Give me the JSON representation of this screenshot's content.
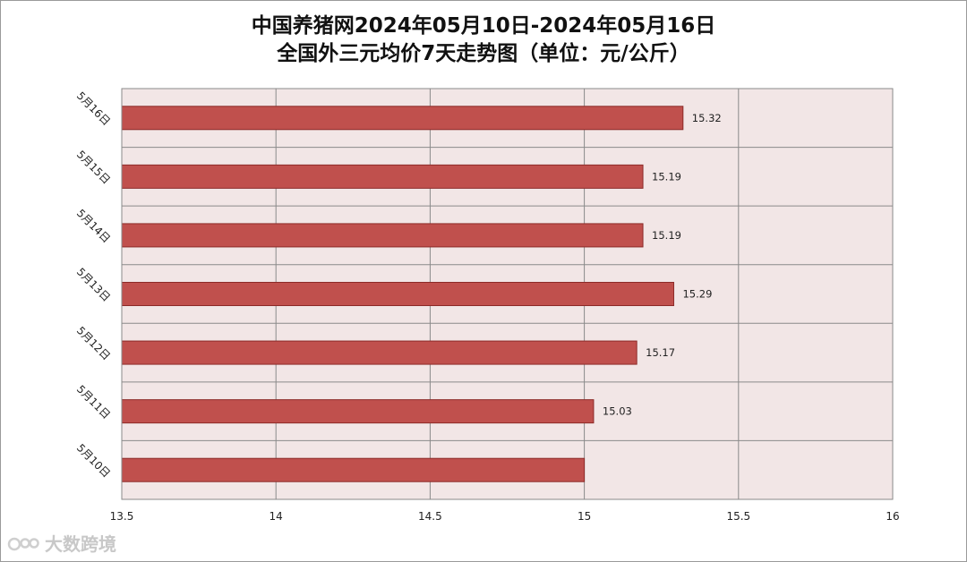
{
  "chart_data": {
    "type": "bar",
    "orientation": "horizontal",
    "title": [
      "中国养猪网2024年05月10日-2024年05月16日",
      "全国外三元均价7天走势图（单位：元/公斤）"
    ],
    "categories": [
      "5月16日",
      "5月15日",
      "5月14日",
      "5月13日",
      "5月12日",
      "5月11日",
      "5月10日"
    ],
    "values": [
      15.32,
      15.19,
      15.19,
      15.29,
      15.17,
      15.03,
      15.0
    ],
    "data_labels": [
      "15.32",
      "15.19",
      "15.19",
      "15.29",
      "15.17",
      "15.03",
      ""
    ],
    "xlim": [
      13.5,
      16
    ],
    "x_ticks": [
      13.5,
      14,
      14.5,
      15,
      15.5,
      16
    ],
    "x_tick_labels": [
      "13.5",
      "14",
      "14.5",
      "15",
      "15.5",
      "16"
    ],
    "grid": true,
    "colors": {
      "bar_fill": "#c0504d",
      "bar_stroke": "#8c2a28",
      "plot_background": "#f2e6e6",
      "grid": "#8a8a8a"
    }
  },
  "watermark": {
    "text": "大数跨境",
    "icon": "logo-icon"
  }
}
